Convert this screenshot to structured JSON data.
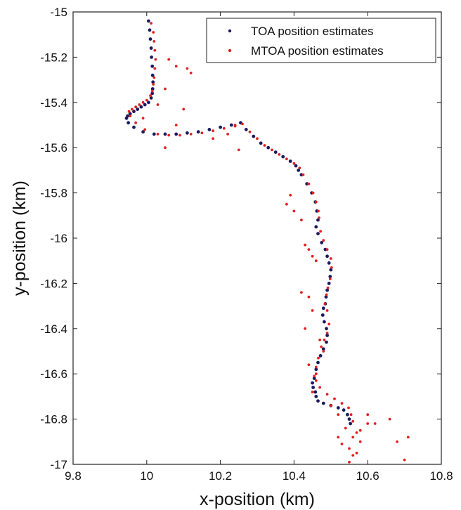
{
  "chart_data": {
    "type": "scatter",
    "title": "",
    "xlabel": "x-position (km)",
    "ylabel": "y-position (km)",
    "xlim": [
      9.8,
      10.8
    ],
    "ylim": [
      -17,
      -15
    ],
    "xticks": [
      "9.8",
      "10",
      "10.2",
      "10.4",
      "10.6",
      "10.8"
    ],
    "yticks": [
      "-15",
      "-15.2",
      "-15.4",
      "-15.6",
      "-15.8",
      "-16",
      "-16.2",
      "-16.4",
      "-16.6",
      "-16.8",
      "-17"
    ],
    "grid": false,
    "legend_position": "top-right",
    "series": [
      {
        "name": "TOA position estimates",
        "color": "#1a1a5e",
        "x": [
          10.005,
          10.008,
          10.01,
          10.012,
          10.013,
          10.015,
          10.016,
          10.017,
          10.016,
          10.015,
          10.012,
          10.005,
          9.995,
          9.985,
          9.975,
          9.965,
          9.955,
          9.948,
          9.945,
          9.95,
          9.965,
          9.99,
          10.02,
          10.05,
          10.08,
          10.11,
          10.14,
          10.17,
          10.2,
          10.23,
          10.255,
          10.27,
          10.29,
          10.31,
          10.33,
          10.35,
          10.37,
          10.39,
          10.405,
          10.412,
          10.42,
          10.435,
          10.448,
          10.458,
          10.462,
          10.465,
          10.46,
          10.465,
          10.475,
          10.485,
          10.49,
          10.495,
          10.5,
          10.498,
          10.495,
          10.49,
          10.487,
          10.485,
          10.48,
          10.478,
          10.482,
          10.488,
          10.49,
          10.488,
          10.48,
          10.472,
          10.465,
          10.46,
          10.455,
          10.45,
          10.452,
          10.458,
          10.46,
          10.465,
          10.48,
          10.5,
          10.52,
          10.535,
          10.545,
          10.55,
          10.553
        ],
        "y": [
          -15.04,
          -15.08,
          -15.12,
          -15.16,
          -15.2,
          -15.24,
          -15.28,
          -15.31,
          -15.34,
          -15.36,
          -15.38,
          -15.4,
          -15.41,
          -15.42,
          -15.43,
          -15.44,
          -15.45,
          -15.46,
          -15.47,
          -15.49,
          -15.51,
          -15.53,
          -15.54,
          -15.54,
          -15.54,
          -15.535,
          -15.53,
          -15.52,
          -15.51,
          -15.5,
          -15.49,
          -15.52,
          -15.55,
          -15.58,
          -15.6,
          -15.62,
          -15.64,
          -15.66,
          -15.68,
          -15.7,
          -15.72,
          -15.76,
          -15.8,
          -15.84,
          -15.88,
          -15.92,
          -15.95,
          -15.98,
          -16.02,
          -16.05,
          -16.08,
          -16.11,
          -16.14,
          -16.17,
          -16.2,
          -16.23,
          -16.26,
          -16.29,
          -16.31,
          -16.34,
          -16.37,
          -16.4,
          -16.43,
          -16.46,
          -16.49,
          -16.52,
          -16.55,
          -16.58,
          -16.62,
          -16.64,
          -16.66,
          -16.68,
          -16.7,
          -16.72,
          -16.73,
          -16.74,
          -16.75,
          -16.76,
          -16.78,
          -16.8,
          -16.82
        ]
      },
      {
        "name": "MTOA position estimates",
        "color": "#e02020",
        "x": [
          10.012,
          10.018,
          10.02,
          10.022,
          10.024,
          10.022,
          10.02,
          10.018,
          10.015,
          10.01,
          10.0,
          9.99,
          9.98,
          9.97,
          9.96,
          9.952,
          9.955,
          9.97,
          9.995,
          10.03,
          10.06,
          10.09,
          10.12,
          10.15,
          10.18,
          10.21,
          10.24,
          10.26,
          10.28,
          10.3,
          10.32,
          10.34,
          10.36,
          10.38,
          10.4,
          10.415,
          10.425,
          10.44,
          10.452,
          10.46,
          10.466,
          10.468,
          10.472,
          10.48,
          10.49,
          10.5,
          10.502,
          10.498,
          10.492,
          10.488,
          10.484,
          10.49,
          10.495,
          10.49,
          10.482,
          10.474,
          10.466,
          10.46,
          10.455,
          10.46,
          10.47,
          10.49,
          10.51,
          10.53,
          10.548,
          10.555,
          10.56,
          10.06,
          10.08,
          10.11,
          10.12,
          10.05,
          10.03,
          10.1,
          10.08,
          9.99,
          10.18,
          10.05,
          10.24,
          10.22,
          10.25,
          10.38,
          10.39,
          10.4,
          10.42,
          10.43,
          10.44,
          10.45,
          10.46,
          10.42,
          10.44,
          10.45,
          10.43,
          10.47,
          10.48,
          10.44,
          10.46,
          10.45,
          10.5,
          10.52,
          10.54,
          10.56,
          10.58,
          10.6,
          10.52,
          10.55,
          10.57,
          10.6,
          10.57,
          10.55,
          10.58,
          10.62,
          10.66,
          10.68,
          10.7,
          10.71,
          10.56,
          10.53
        ],
        "y": [
          -15.05,
          -15.09,
          -15.13,
          -15.17,
          -15.21,
          -15.25,
          -15.29,
          -15.32,
          -15.35,
          -15.37,
          -15.39,
          -15.4,
          -15.41,
          -15.42,
          -15.43,
          -15.44,
          -15.46,
          -15.49,
          -15.52,
          -15.54,
          -15.545,
          -15.545,
          -15.54,
          -15.535,
          -15.525,
          -15.515,
          -15.505,
          -15.495,
          -15.53,
          -15.56,
          -15.59,
          -15.61,
          -15.63,
          -15.65,
          -15.67,
          -15.69,
          -15.72,
          -15.76,
          -15.8,
          -15.84,
          -15.88,
          -15.91,
          -15.97,
          -16.01,
          -16.05,
          -16.09,
          -16.13,
          -16.18,
          -16.22,
          -16.25,
          -16.29,
          -16.32,
          -16.38,
          -16.42,
          -16.45,
          -16.48,
          -16.53,
          -16.57,
          -16.61,
          -16.63,
          -16.66,
          -16.69,
          -16.71,
          -16.73,
          -16.75,
          -16.78,
          -16.81,
          -15.21,
          -15.24,
          -15.25,
          -15.27,
          -15.34,
          -15.41,
          -15.43,
          -15.5,
          -15.47,
          -15.56,
          -15.6,
          -15.5,
          -15.54,
          -15.61,
          -15.85,
          -15.81,
          -15.88,
          -15.92,
          -16.03,
          -16.05,
          -16.08,
          -16.1,
          -16.24,
          -16.26,
          -16.32,
          -16.4,
          -16.45,
          -16.5,
          -16.56,
          -16.6,
          -16.68,
          -16.74,
          -16.78,
          -16.84,
          -16.88,
          -16.9,
          -16.78,
          -16.88,
          -16.93,
          -16.86,
          -16.82,
          -16.95,
          -16.99,
          -16.85,
          -16.82,
          -16.8,
          -16.9,
          -16.98,
          -16.88,
          -16.96,
          -16.91
        ]
      }
    ]
  }
}
